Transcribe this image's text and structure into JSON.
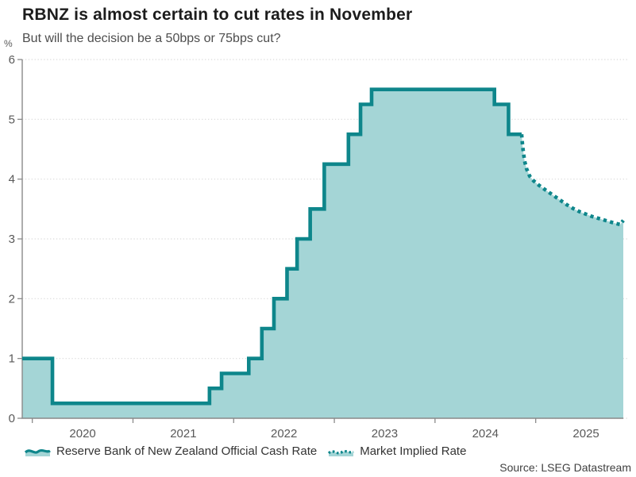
{
  "header": {
    "title": "RBNZ is almost certain to cut rates in November",
    "subtitle": "But will the decision be a 50bps or 75bps cut?"
  },
  "y_axis": {
    "unit": "%",
    "ticks": [
      6,
      5,
      4,
      3,
      2,
      1,
      0
    ]
  },
  "x_axis": {
    "ticks": [
      2020,
      2021,
      2022,
      2023,
      2024,
      2025
    ]
  },
  "legend": {
    "items": [
      {
        "label": "Reserve Bank of New Zealand Official Cash Rate",
        "icon": "solid-wave-icon"
      },
      {
        "label": "Market Implied Rate",
        "icon": "dotted-wave-icon"
      }
    ]
  },
  "source": "Source: LSEG Datastream",
  "colors": {
    "line": "#0e868b",
    "fill": "#a4d5d6",
    "axis": "#8a8a8a",
    "grid": "#d9d9d9",
    "tick_text": "#595959"
  },
  "chart_data": {
    "type": "line",
    "title": "RBNZ is almost certain to cut rates in November",
    "subtitle": "But will the decision be a 50bps or 75bps cut?",
    "ylabel": "%",
    "x_range": [
      2019.9,
      2025.87
    ],
    "y_range": [
      0,
      6
    ],
    "x_ticks": [
      2020,
      2021,
      2022,
      2023,
      2024,
      2025
    ],
    "y_ticks": [
      0,
      1,
      2,
      3,
      4,
      5,
      6
    ],
    "grid": true,
    "legend_position": "bottom",
    "series": [
      {
        "name": "Reserve Bank of New Zealand Official Cash Rate",
        "style": "step-solid",
        "end_x": 2024.86,
        "points": [
          [
            2019.9,
            1.0
          ],
          [
            2020.2,
            0.25
          ],
          [
            2021.76,
            0.5
          ],
          [
            2021.88,
            0.75
          ],
          [
            2022.15,
            1.0
          ],
          [
            2022.28,
            1.5
          ],
          [
            2022.4,
            2.0
          ],
          [
            2022.53,
            2.5
          ],
          [
            2022.63,
            3.0
          ],
          [
            2022.76,
            3.5
          ],
          [
            2022.9,
            4.25
          ],
          [
            2023.14,
            4.75
          ],
          [
            2023.26,
            5.25
          ],
          [
            2023.37,
            5.5
          ],
          [
            2024.59,
            5.25
          ],
          [
            2024.73,
            4.75
          ]
        ]
      },
      {
        "name": "Market Implied Rate",
        "style": "dotted",
        "points": [
          [
            2024.86,
            4.75
          ],
          [
            2024.87,
            4.55
          ],
          [
            2024.88,
            4.42
          ],
          [
            2024.89,
            4.3
          ],
          [
            2024.91,
            4.17
          ],
          [
            2024.94,
            4.05
          ],
          [
            2024.98,
            3.97
          ],
          [
            2025.03,
            3.9
          ],
          [
            2025.08,
            3.84
          ],
          [
            2025.13,
            3.78
          ],
          [
            2025.19,
            3.71
          ],
          [
            2025.25,
            3.64
          ],
          [
            2025.31,
            3.57
          ],
          [
            2025.37,
            3.51
          ],
          [
            2025.43,
            3.46
          ],
          [
            2025.49,
            3.42
          ],
          [
            2025.55,
            3.38
          ],
          [
            2025.61,
            3.35
          ],
          [
            2025.67,
            3.32
          ],
          [
            2025.73,
            3.29
          ],
          [
            2025.79,
            3.26
          ],
          [
            2025.84,
            3.24
          ],
          [
            2025.87,
            3.31
          ]
        ]
      }
    ]
  }
}
